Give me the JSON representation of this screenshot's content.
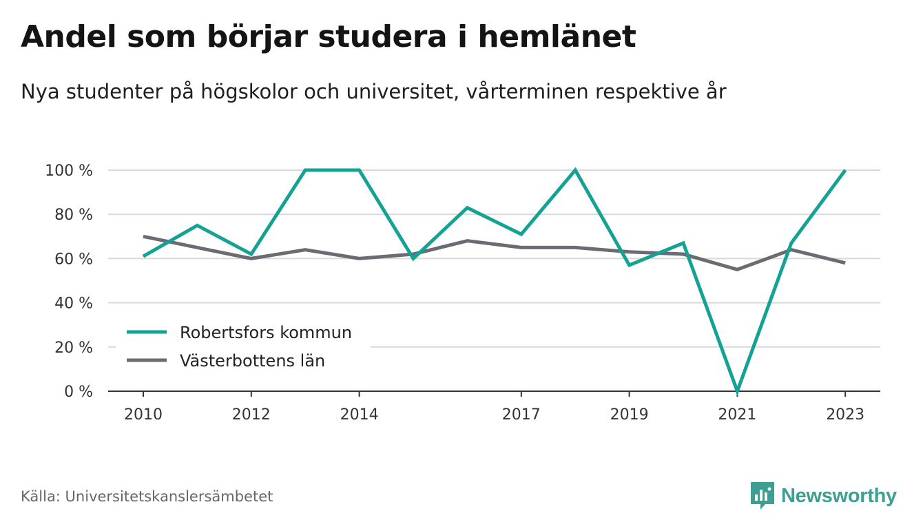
{
  "title": "Andel som börjar studera i hemlänet",
  "subtitle": "Nya studenter på högskolor och universitet, vårterminen respektive år",
  "source": "Källa: Universitetskanslersämbetet",
  "brand": {
    "name": "Newsworthy",
    "color": "#3d9e91",
    "icon": "bar-chart-bubble-icon"
  },
  "chart_data": {
    "type": "line",
    "x": [
      2010,
      2011,
      2012,
      2013,
      2014,
      2015,
      2016,
      2017,
      2018,
      2019,
      2020,
      2021,
      2022,
      2023
    ],
    "x_tick_labels": [
      "2010",
      "2012",
      "2014",
      "2017",
      "2019",
      "2021",
      "2023"
    ],
    "y_tick_labels": [
      "0 %",
      "20 %",
      "40 %",
      "60 %",
      "80 %",
      "100 %"
    ],
    "ylim": [
      0,
      100
    ],
    "grid": true,
    "legend_position": "bottom-left",
    "series": [
      {
        "name": "Robertsfors kommun",
        "color": "#14a294",
        "values": [
          61,
          75,
          62,
          100,
          100,
          60,
          83,
          71,
          100,
          57,
          67,
          0,
          67,
          100
        ]
      },
      {
        "name": "Västerbottens län",
        "color": "#6b6b73",
        "values": [
          70,
          65,
          60,
          64,
          60,
          62,
          68,
          65,
          65,
          63,
          62,
          55,
          64,
          58
        ]
      }
    ]
  }
}
